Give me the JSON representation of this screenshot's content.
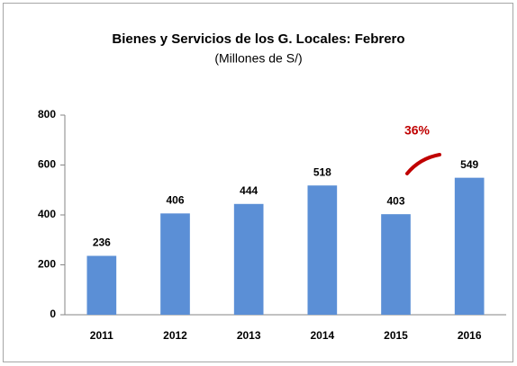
{
  "chart_data": {
    "type": "bar",
    "title": "Bienes y Servicios de los G. Locales: Febrero",
    "subtitle": "(Millones de S/)",
    "categories": [
      "2011",
      "2012",
      "2013",
      "2014",
      "2015",
      "2016"
    ],
    "values": [
      236,
      406,
      444,
      518,
      403,
      549
    ],
    "color": "#5b8fd6",
    "ylim": [
      0,
      800
    ],
    "yticks": [
      0,
      200,
      400,
      600,
      800
    ],
    "grid": false,
    "annotation": "36%",
    "annotation_color": "#c00000"
  }
}
